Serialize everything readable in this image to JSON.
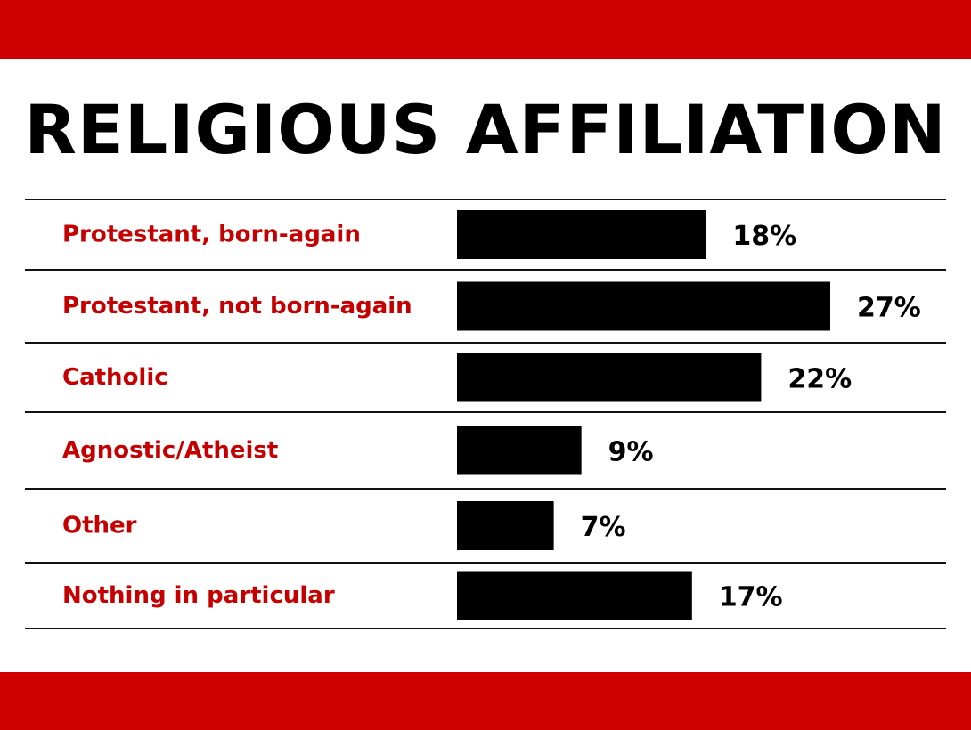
{
  "title": "RELIGIOUS AFFILIATION",
  "colors": {
    "band": "#d10000",
    "label": "#c40000",
    "bar": "#000000",
    "value": "#000000",
    "rule": "#111111"
  },
  "chart_data": {
    "type": "bar",
    "orientation": "horizontal",
    "title": "RELIGIOUS AFFILIATION",
    "categories": [
      "Protestant, born-again",
      "Protestant, not born-again",
      "Catholic",
      "Agnostic/Atheist",
      "Other",
      "Nothing in particular"
    ],
    "values": [
      18,
      27,
      22,
      9,
      7,
      17
    ],
    "value_labels": [
      "18%",
      "27%",
      "22%",
      "9%",
      "7%",
      "17%"
    ],
    "unit": "%",
    "xlim": [
      0,
      27
    ],
    "grid": false,
    "legend": "none"
  }
}
